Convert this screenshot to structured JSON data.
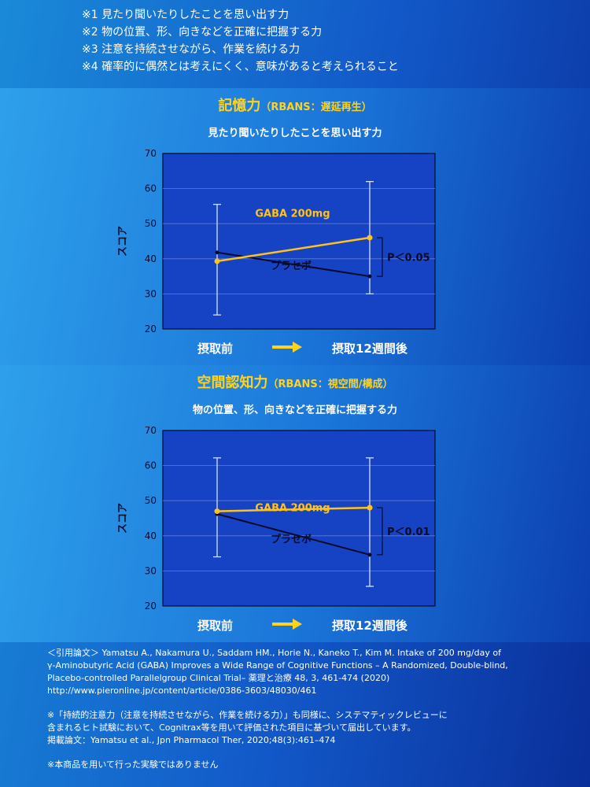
{
  "notes_top": [
    "※1 見たり聞いたりしたことを思い出す力",
    "※2 物の位置、形、向きなどを正確に把握する力",
    "※3 注意を持続させながら、作業を続ける力",
    "※4 確率的に偶然とは考えにくく、意味があると考えられること"
  ],
  "panels": [
    {
      "title_main": "記憶力",
      "title_sub": "（RBANS：遅延再生）",
      "subtitle": "見たり聞いたりしたことを思い出す力",
      "x_label_start": "摂取前",
      "x_label_end": "摂取12週間後"
    },
    {
      "title_main": "空間認知力",
      "title_sub": "（RBANS：視空間/構成）",
      "subtitle": "物の位置、形、向きなどを正確に把握する力",
      "x_label_start": "摂取前",
      "x_label_end": "摂取12週間後"
    }
  ],
  "chart_data": [
    {
      "type": "line",
      "ylabel": "スコア",
      "ylim": [
        20,
        70
      ],
      "yticks": [
        20,
        30,
        40,
        50,
        60,
        70
      ],
      "x": [
        "摂取前",
        "摂取12週間後"
      ],
      "grid": true,
      "series": [
        {
          "name": "GABA 200mg",
          "color": "#ffc21a",
          "values": [
            39.3,
            46.0
          ],
          "error_low": [
            24.0,
            30.0
          ],
          "error_high": [
            55.5,
            62.0
          ]
        },
        {
          "name": "プラセボ",
          "color": "#0a0a2a",
          "values": [
            41.8,
            35.0
          ]
        }
      ],
      "significance": "P＜0.05"
    },
    {
      "type": "line",
      "ylabel": "スコア",
      "ylim": [
        20,
        70
      ],
      "yticks": [
        20,
        30,
        40,
        50,
        60,
        70
      ],
      "x": [
        "摂取前",
        "摂取12週間後"
      ],
      "grid": true,
      "series": [
        {
          "name": "GABA 200mg",
          "color": "#ffc21a",
          "values": [
            47.0,
            48.0
          ],
          "error_low": [
            34.0,
            25.6
          ],
          "error_high": [
            62.2,
            62.2
          ]
        },
        {
          "name": "プラセボ",
          "color": "#0a0a2a",
          "values": [
            46.2,
            34.6
          ]
        }
      ],
      "significance": "P＜0.01"
    }
  ],
  "refs": [
    "＜引用論文＞ Yamatsu A., Nakamura U., Saddam HM., Horie N., Kaneko T., Kim M. Intake of 200 mg/day of",
    "γ-Aminobutyric Acid (GABA) Improves a Wide Range of Cognitive Functions – A Randomized, Double-blind,",
    "Placebo-controlled Parallelgroup Clinical Trial– 薬理と治療 48, 3, 461-474 (2020)",
    "http://www.pieronline.jp/content/article/0386-3603/48030/461"
  ],
  "notes_bottom": [
    "※「持続的注意力（注意を持続させながら、作業を続ける力）」も同様に、システマティックレビューに",
    "含まれるヒト試験において、Cognitrax等を用いて評価された項目に基づいて届出しています。",
    " 掲載論文：Yamatsu et al., Jpn Pharmacol Ther, 2020;48(3):461–474"
  ],
  "disclaimer": "※本商品を用いて行った実験ではありません"
}
